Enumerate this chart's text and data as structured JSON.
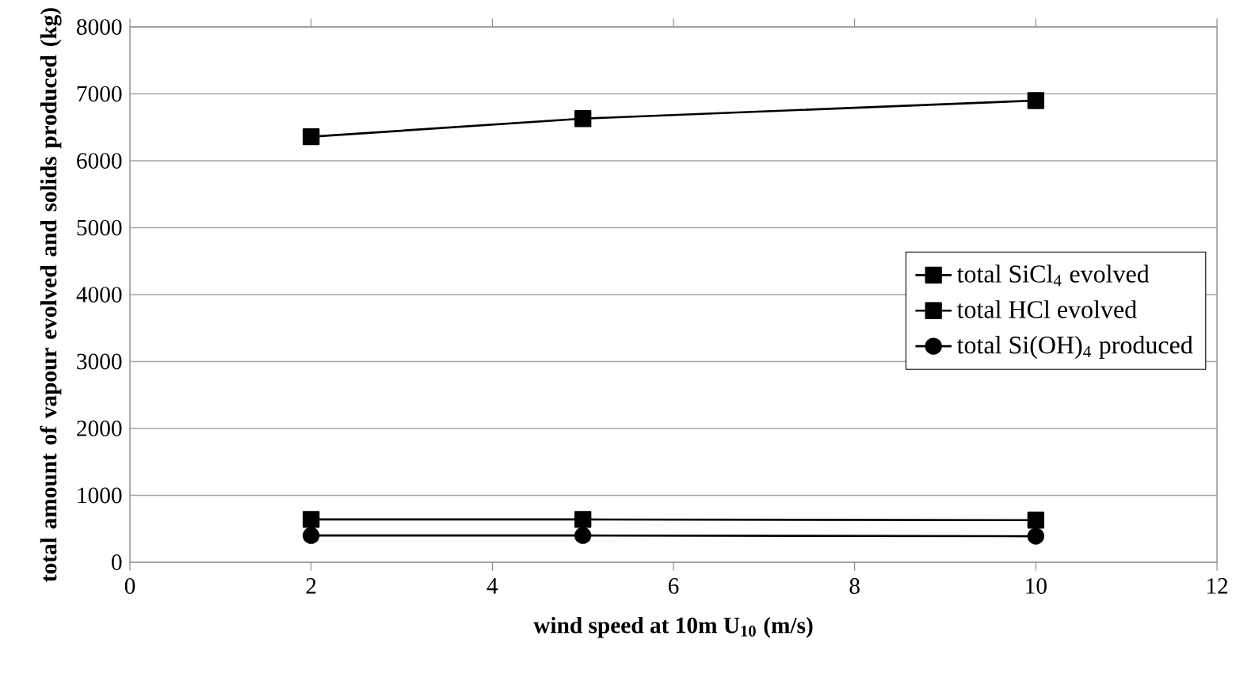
{
  "chart_data": {
    "type": "line",
    "xlabel": "wind speed at 10m U$_{10}$ (m/s)",
    "ylabel": "total amount of vapour evolved and solids produced (kg)",
    "x": [
      2,
      5,
      10
    ],
    "xlim": [
      0,
      12
    ],
    "xticks": [
      0,
      2,
      4,
      6,
      8,
      10,
      12
    ],
    "ylim": [
      0,
      8000
    ],
    "yticks": [
      0,
      1000,
      2000,
      3000,
      4000,
      5000,
      6000,
      7000,
      8000
    ],
    "grid": "y",
    "legend": "right",
    "line_style": "solid",
    "series": [
      {
        "name": "total SiCl$_{4}$ evolved",
        "color": "#000000",
        "marker": "square",
        "values": [
          6360,
          6630,
          6900
        ]
      },
      {
        "name": "total HCl evolved",
        "color": "#000000",
        "marker": "square",
        "values": [
          640,
          640,
          630
        ]
      },
      {
        "name": "total Si(OH)$_{4}$ produced",
        "color": "#000000",
        "marker": "circle",
        "values": [
          400,
          400,
          390
        ]
      }
    ]
  }
}
